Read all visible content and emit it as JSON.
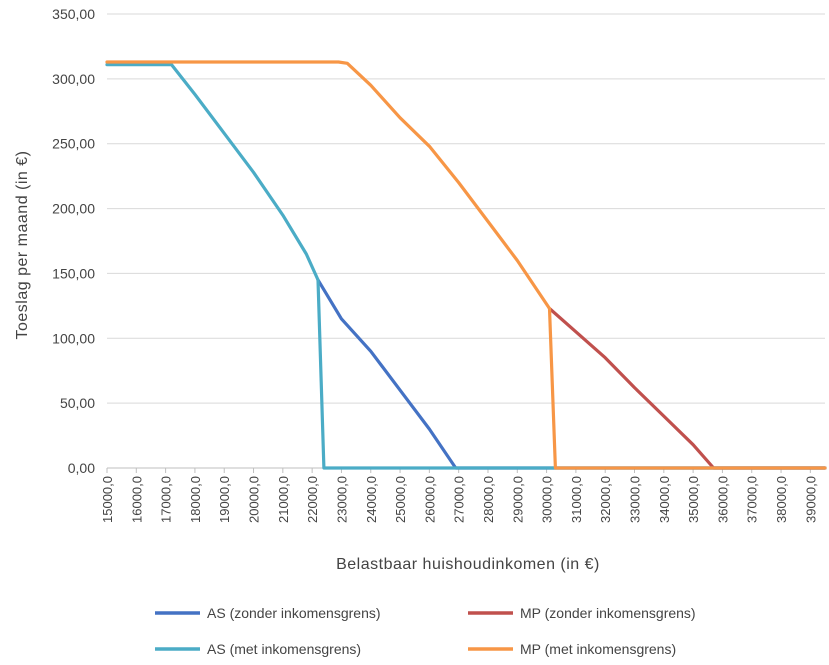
{
  "chart_data": {
    "type": "line",
    "title": "",
    "xlabel": "Belastbaar huishoudinkomen (in €)",
    "ylabel": "Toeslag per maand (in €)",
    "xlim": [
      15000,
      39500
    ],
    "ylim": [
      0,
      350
    ],
    "yticks": [
      "0,00",
      "50,00",
      "100,00",
      "150,00",
      "200,00",
      "250,00",
      "300,00",
      "350,00"
    ],
    "xticks": [
      "15000,0",
      "16000,0",
      "17000,0",
      "18000,0",
      "19000,0",
      "20000,0",
      "21000,0",
      "22000,0",
      "23000,0",
      "24000,0",
      "25000,0",
      "26000,0",
      "27000,0",
      "28000,0",
      "29000,0",
      "30000,0",
      "31000,0",
      "32000,0",
      "33000,0",
      "34000,0",
      "35000,0",
      "36000,0",
      "37000,0",
      "38000,0",
      "39000,0"
    ],
    "grid": true,
    "legend_position": "bottom",
    "series": [
      {
        "name": "AS (zonder inkomensgrens)",
        "color": "#4472c4",
        "points": [
          [
            22200,
            145
          ],
          [
            23000,
            115
          ],
          [
            24000,
            90
          ],
          [
            25000,
            60
          ],
          [
            26000,
            30
          ],
          [
            26900,
            0
          ],
          [
            39500,
            0
          ]
        ]
      },
      {
        "name": "MP (zonder inkomensgrens)",
        "color": "#c0504d",
        "points": [
          [
            30100,
            123
          ],
          [
            31000,
            105
          ],
          [
            32000,
            85
          ],
          [
            33000,
            62
          ],
          [
            34000,
            40
          ],
          [
            35000,
            18
          ],
          [
            35700,
            0
          ],
          [
            39500,
            0
          ]
        ]
      },
      {
        "name": "AS (met inkomensgrens)",
        "color": "#4bacc6",
        "points": [
          [
            15000,
            311
          ],
          [
            17200,
            311
          ],
          [
            18000,
            288
          ],
          [
            19000,
            258
          ],
          [
            20000,
            228
          ],
          [
            21000,
            195
          ],
          [
            21800,
            165
          ],
          [
            22200,
            145
          ],
          [
            22400,
            0
          ],
          [
            39500,
            0
          ]
        ]
      },
      {
        "name": "MP (met inkomensgrens)",
        "color": "#f79646",
        "points": [
          [
            15000,
            313
          ],
          [
            22900,
            313
          ],
          [
            23200,
            312
          ],
          [
            24000,
            295
          ],
          [
            25000,
            270
          ],
          [
            26000,
            248
          ],
          [
            27000,
            220
          ],
          [
            28000,
            190
          ],
          [
            29000,
            160
          ],
          [
            30100,
            123
          ],
          [
            30300,
            0
          ],
          [
            39500,
            0
          ]
        ]
      }
    ]
  }
}
